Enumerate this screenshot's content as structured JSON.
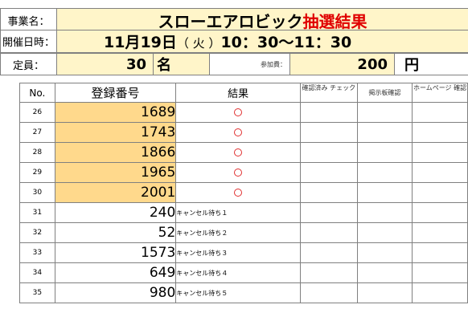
{
  "header": {
    "event_label": "事業名：",
    "event_title": "スローエアロビック",
    "event_title_suffix": "抽選結果",
    "date_label": "開催日時：",
    "date_main": "11月19日",
    "date_weekday": "（ 火 ）",
    "date_time": "10：30〜11：30",
    "capacity_label": "定員：",
    "capacity_value": "30",
    "capacity_unit": "名",
    "fee_label": "参加費：",
    "fee_value": "200",
    "fee_unit": "円"
  },
  "table": {
    "columns": [
      "No.",
      "登録番号",
      "結果",
      "確認済み チェック",
      "掲示板確認",
      "ホームページ 確認"
    ],
    "rows": [
      {
        "no": "26",
        "reg": "1689",
        "result": "○",
        "highlight": true
      },
      {
        "no": "27",
        "reg": "1743",
        "result": "○",
        "highlight": true
      },
      {
        "no": "28",
        "reg": "1866",
        "result": "○",
        "highlight": true
      },
      {
        "no": "29",
        "reg": "1965",
        "result": "○",
        "highlight": true
      },
      {
        "no": "30",
        "reg": "2001",
        "result": "○",
        "highlight": true
      },
      {
        "no": "31",
        "reg": "240",
        "result": "キャンセル待ち１",
        "highlight": false
      },
      {
        "no": "32",
        "reg": "52",
        "result": "キャンセル待ち２",
        "highlight": false
      },
      {
        "no": "33",
        "reg": "1573",
        "result": "キャンセル待ち３",
        "highlight": false
      },
      {
        "no": "34",
        "reg": "649",
        "result": "キャンセル待ち４",
        "highlight": false
      },
      {
        "no": "35",
        "reg": "980",
        "result": "キャンセル待ち５",
        "highlight": false
      }
    ]
  },
  "colors": {
    "highlight": "#ffd98c",
    "header_fill": "#fff5c9",
    "accent_red": "#e00000",
    "circle": "#e03030"
  }
}
